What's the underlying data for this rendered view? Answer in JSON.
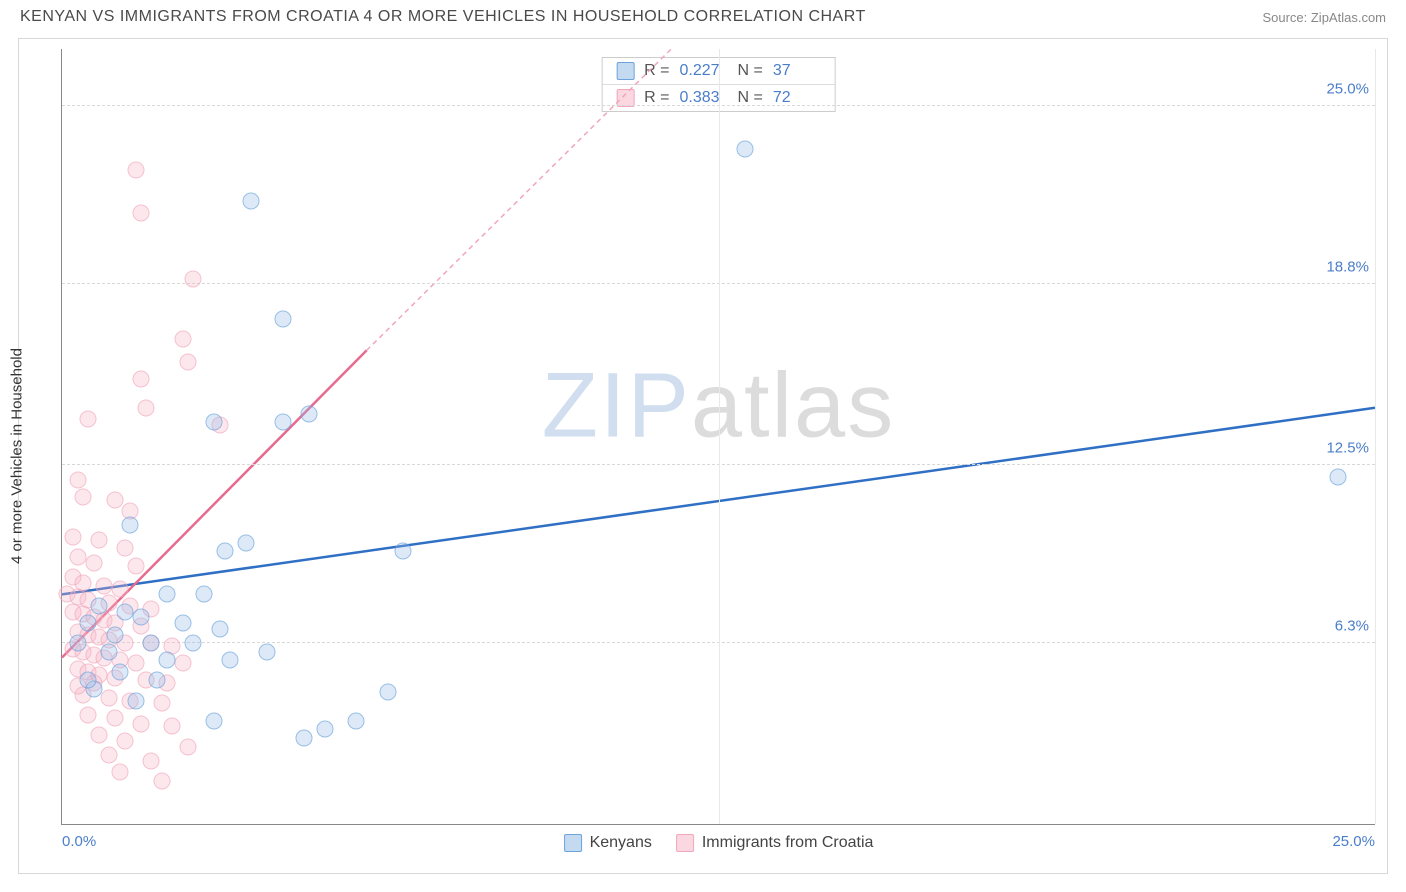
{
  "title": "KENYAN VS IMMIGRANTS FROM CROATIA 4 OR MORE VEHICLES IN HOUSEHOLD CORRELATION CHART",
  "source": "Source: ZipAtlas.com",
  "ylabel": "4 or more Vehicles in Household",
  "watermark": {
    "prefix": "ZIP",
    "suffix": "atlas"
  },
  "chart": {
    "type": "scatter",
    "background_color": "#ffffff",
    "grid_color": "#d8d8d8",
    "axis_color": "#888888",
    "tick_label_color": "#4a7ec9",
    "xlim": [
      0.0,
      25.0
    ],
    "ylim": [
      0.0,
      27.0
    ],
    "xticks": [
      {
        "v": 0.0,
        "label": "0.0%"
      },
      {
        "v": 25.0,
        "label": "25.0%"
      }
    ],
    "yticks": [
      {
        "v": 6.3,
        "label": "6.3%"
      },
      {
        "v": 12.5,
        "label": "12.5%"
      },
      {
        "v": 18.8,
        "label": "18.8%"
      },
      {
        "v": 25.0,
        "label": "25.0%"
      }
    ],
    "vgrid": [
      12.5,
      25.0
    ],
    "series": [
      {
        "id": "kenyans",
        "label": "Kenyans",
        "color_fill": "rgba(148,187,230,0.45)",
        "color_stroke": "#6ca3db",
        "marker_size": 17,
        "R": "0.227",
        "N": "37",
        "trend": {
          "x1": 0.0,
          "y1": 8.0,
          "x2": 25.0,
          "y2": 14.5,
          "stroke": "#2f6fc4",
          "width": 2.5,
          "dash": "none"
        },
        "points": [
          [
            13.0,
            23.5
          ],
          [
            3.6,
            21.7
          ],
          [
            4.2,
            17.6
          ],
          [
            4.7,
            14.3
          ],
          [
            4.2,
            14.0
          ],
          [
            2.9,
            14.0
          ],
          [
            1.3,
            10.4
          ],
          [
            3.5,
            9.8
          ],
          [
            3.1,
            9.5
          ],
          [
            6.5,
            9.5
          ],
          [
            24.3,
            12.1
          ],
          [
            2.0,
            8.0
          ],
          [
            2.7,
            8.0
          ],
          [
            0.7,
            7.6
          ],
          [
            1.2,
            7.4
          ],
          [
            1.5,
            7.2
          ],
          [
            0.5,
            7.0
          ],
          [
            2.3,
            7.0
          ],
          [
            3.0,
            6.8
          ],
          [
            1.0,
            6.6
          ],
          [
            0.3,
            6.3
          ],
          [
            1.7,
            6.3
          ],
          [
            2.5,
            6.3
          ],
          [
            0.9,
            6.0
          ],
          [
            2.0,
            5.7
          ],
          [
            3.2,
            5.7
          ],
          [
            3.9,
            6.0
          ],
          [
            1.1,
            5.3
          ],
          [
            0.6,
            4.7
          ],
          [
            1.4,
            4.3
          ],
          [
            6.2,
            4.6
          ],
          [
            2.9,
            3.6
          ],
          [
            5.6,
            3.6
          ],
          [
            5.0,
            3.3
          ],
          [
            4.6,
            3.0
          ],
          [
            0.5,
            5.0
          ],
          [
            1.8,
            5.0
          ]
        ]
      },
      {
        "id": "croatia",
        "label": "Immigrants from Croatia",
        "color_fill": "rgba(247,182,200,0.45)",
        "color_stroke": "#f1a6bb",
        "marker_size": 17,
        "R": "0.383",
        "N": "72",
        "trend_solid": {
          "x1": 0.0,
          "y1": 5.8,
          "x2": 5.8,
          "y2": 16.5,
          "stroke": "#e76a8f",
          "width": 2.5
        },
        "trend_dash": {
          "x1": 5.8,
          "y1": 16.5,
          "x2": 11.6,
          "y2": 27.0,
          "stroke": "#f1a6bb",
          "width": 1.5
        },
        "points": [
          [
            1.4,
            22.8
          ],
          [
            1.5,
            21.3
          ],
          [
            2.5,
            19.0
          ],
          [
            2.3,
            16.9
          ],
          [
            2.4,
            16.1
          ],
          [
            1.5,
            15.5
          ],
          [
            1.6,
            14.5
          ],
          [
            0.5,
            14.1
          ],
          [
            3.0,
            13.9
          ],
          [
            0.3,
            12.0
          ],
          [
            0.4,
            11.4
          ],
          [
            1.0,
            11.3
          ],
          [
            1.3,
            10.9
          ],
          [
            0.2,
            10.0
          ],
          [
            0.7,
            9.9
          ],
          [
            1.2,
            9.6
          ],
          [
            0.3,
            9.3
          ],
          [
            0.6,
            9.1
          ],
          [
            1.4,
            9.0
          ],
          [
            0.2,
            8.6
          ],
          [
            0.4,
            8.4
          ],
          [
            0.8,
            8.3
          ],
          [
            1.1,
            8.2
          ],
          [
            0.1,
            8.0
          ],
          [
            0.3,
            7.9
          ],
          [
            0.5,
            7.8
          ],
          [
            0.9,
            7.7
          ],
          [
            1.3,
            7.6
          ],
          [
            1.7,
            7.5
          ],
          [
            0.2,
            7.4
          ],
          [
            0.4,
            7.3
          ],
          [
            0.6,
            7.2
          ],
          [
            0.8,
            7.1
          ],
          [
            1.0,
            7.0
          ],
          [
            1.5,
            6.9
          ],
          [
            0.3,
            6.7
          ],
          [
            0.5,
            6.6
          ],
          [
            0.7,
            6.5
          ],
          [
            0.9,
            6.4
          ],
          [
            1.2,
            6.3
          ],
          [
            1.7,
            6.3
          ],
          [
            2.1,
            6.2
          ],
          [
            0.2,
            6.1
          ],
          [
            0.4,
            6.0
          ],
          [
            0.6,
            5.9
          ],
          [
            0.8,
            5.8
          ],
          [
            1.1,
            5.7
          ],
          [
            1.4,
            5.6
          ],
          [
            2.3,
            5.6
          ],
          [
            0.3,
            5.4
          ],
          [
            0.5,
            5.3
          ],
          [
            0.7,
            5.2
          ],
          [
            1.0,
            5.1
          ],
          [
            1.6,
            5.0
          ],
          [
            2.0,
            4.9
          ],
          [
            0.4,
            4.5
          ],
          [
            0.9,
            4.4
          ],
          [
            1.3,
            4.3
          ],
          [
            1.9,
            4.2
          ],
          [
            0.5,
            3.8
          ],
          [
            1.0,
            3.7
          ],
          [
            1.5,
            3.5
          ],
          [
            2.1,
            3.4
          ],
          [
            0.7,
            3.1
          ],
          [
            1.2,
            2.9
          ],
          [
            2.4,
            2.7
          ],
          [
            0.9,
            2.4
          ],
          [
            1.7,
            2.2
          ],
          [
            1.1,
            1.8
          ],
          [
            1.9,
            1.5
          ],
          [
            0.6,
            4.9
          ],
          [
            0.3,
            4.8
          ]
        ]
      }
    ],
    "bottom_legend": [
      {
        "series": "kenyans",
        "label": "Kenyans"
      },
      {
        "series": "croatia",
        "label": "Immigrants from Croatia"
      }
    ]
  }
}
